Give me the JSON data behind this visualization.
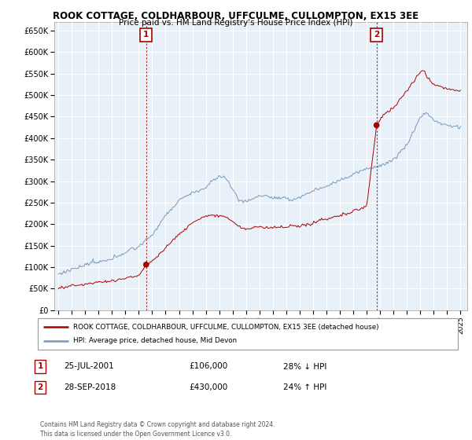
{
  "title": "ROOK COTTAGE, COLDHARBOUR, UFFCULME, CULLOMPTON, EX15 3EE",
  "subtitle": "Price paid vs. HM Land Registry's House Price Index (HPI)",
  "legend_line1": "ROOK COTTAGE, COLDHARBOUR, UFFCULME, CULLOMPTON, EX15 3EE (detached house)",
  "legend_line2": "HPI: Average price, detached house, Mid Devon",
  "annotation1_date": "25-JUL-2001",
  "annotation1_price": "£106,000",
  "annotation1_hpi": "28% ↓ HPI",
  "annotation2_date": "28-SEP-2018",
  "annotation2_price": "£430,000",
  "annotation2_hpi": "24% ↑ HPI",
  "footer": "Contains HM Land Registry data © Crown copyright and database right 2024.\nThis data is licensed under the Open Government Licence v3.0.",
  "red_color": "#aa0000",
  "blue_color": "#7799bb",
  "annotation_color": "#aa0000",
  "background_color": "#ffffff",
  "chart_bg_color": "#e8f0f8",
  "grid_color": "#ffffff",
  "ylim": [
    0,
    670000
  ],
  "yticks": [
    0,
    50000,
    100000,
    150000,
    200000,
    250000,
    300000,
    350000,
    400000,
    450000,
    500000,
    550000,
    600000,
    650000
  ],
  "ytick_labels": [
    "£0",
    "£50K",
    "£100K",
    "£150K",
    "£200K",
    "£250K",
    "£300K",
    "£350K",
    "£400K",
    "£450K",
    "£500K",
    "£550K",
    "£600K",
    "£650K"
  ],
  "sale1_year": 2001.55,
  "sale1_price": 106000,
  "sale2_year": 2018.73,
  "sale2_price": 430000,
  "xlim_left": 1994.7,
  "xlim_right": 2025.5
}
